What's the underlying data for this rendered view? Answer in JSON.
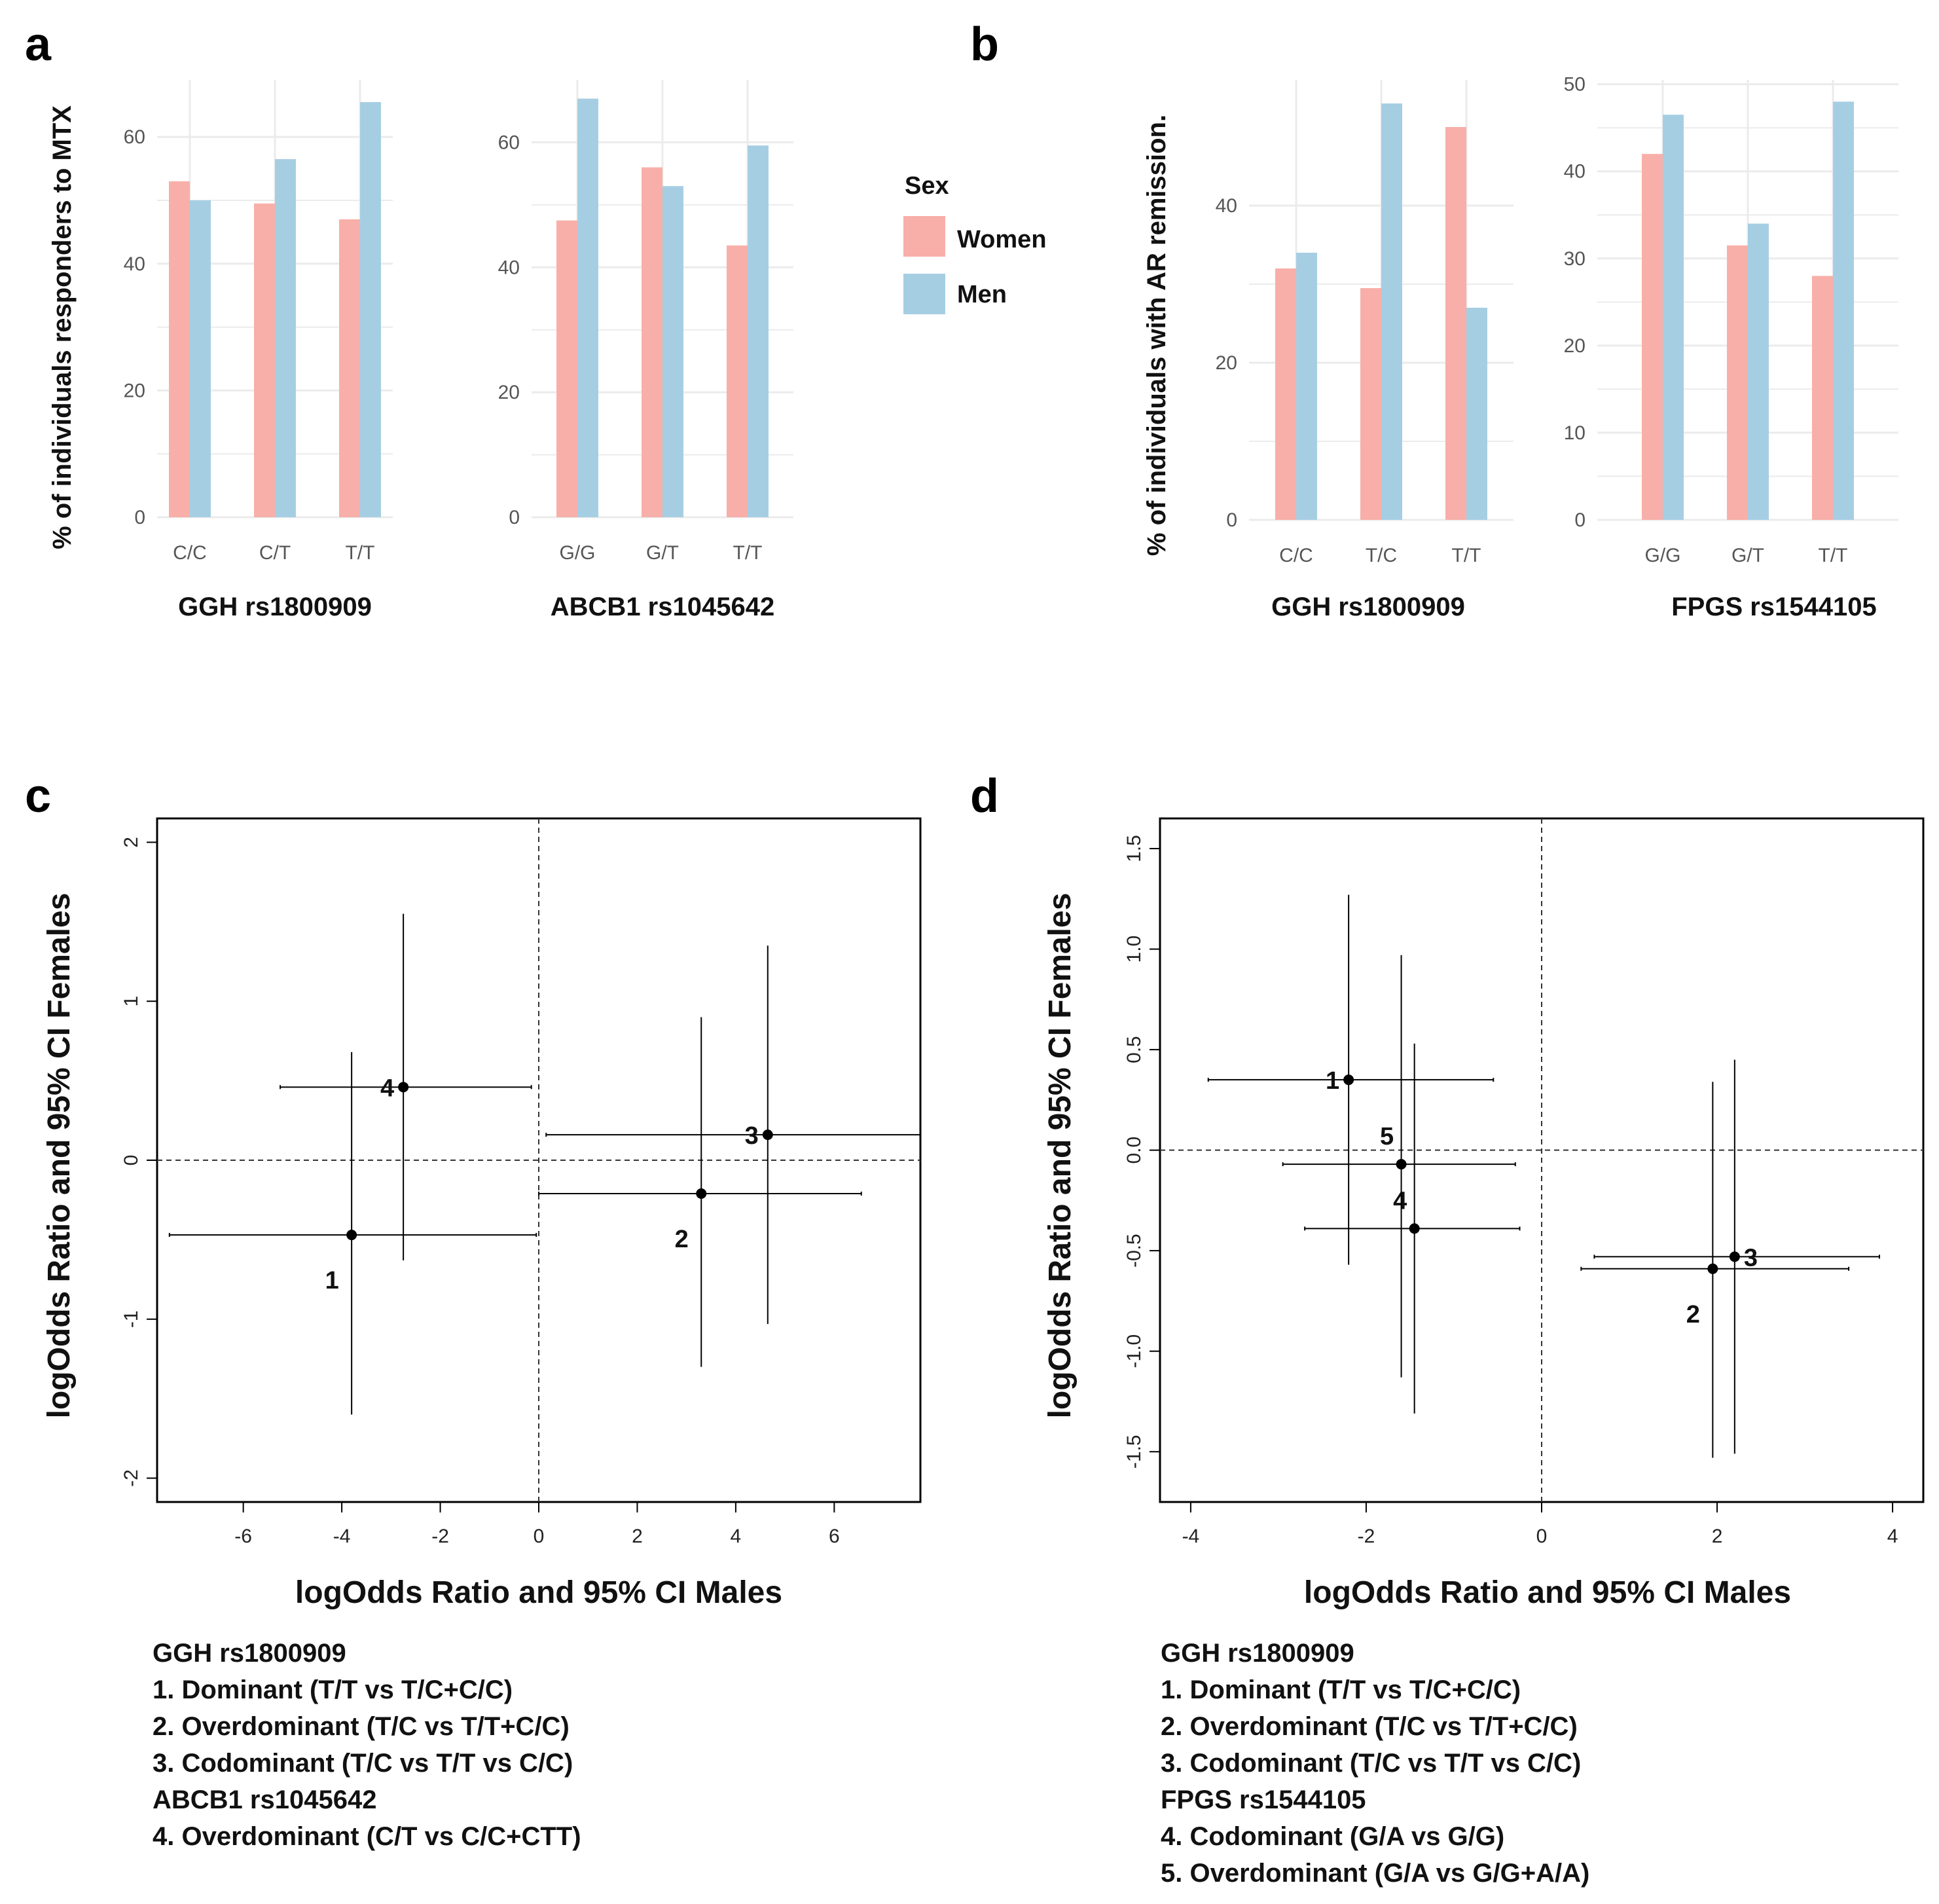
{
  "panels": {
    "a": "a",
    "b": "b",
    "c": "c",
    "d": "d"
  },
  "colors": {
    "women": "#F8AFA9",
    "men": "#A6CEE3",
    "grid": "#EBEBEB",
    "axis": "#000000"
  },
  "legend": {
    "title": "Sex",
    "items": [
      {
        "label": "Women",
        "color": "#F8AFA9"
      },
      {
        "label": "Men",
        "color": "#A6CEE3"
      }
    ]
  },
  "captions": {
    "c": [
      "GGH rs1800909",
      "1. Dominant (T/T vs T/C+C/C)",
      "2. Overdominant (T/C vs T/T+C/C)",
      "3. Codominant (T/C vs T/T vs C/C)",
      "ABCB1 rs1045642",
      "4. Overdominant (C/T vs C/C+CTT)"
    ],
    "d": [
      "GGH rs1800909",
      "1. Dominant (T/T vs T/C+C/C)",
      "2. Overdominant (T/C vs T/T+C/C)",
      "3. Codominant (T/C vs T/T vs C/C)",
      "FPGS rs1544105",
      "4. Codominant (G/A vs G/G)",
      "5. Overdominant (G/A vs G/G+A/A)"
    ]
  },
  "chart_data": [
    {
      "id": "a1",
      "type": "bar",
      "panel": "a",
      "ylabel": "% of individuals  responders to MTX",
      "xlabel": "GGH rs1800909",
      "categories": [
        "C/C",
        "C/T",
        "T/T"
      ],
      "series": [
        {
          "name": "Women",
          "values": [
            53,
            49.5,
            47
          ]
        },
        {
          "name": "Men",
          "values": [
            50,
            56.5,
            65.5
          ]
        }
      ],
      "ylim": [
        0,
        69
      ],
      "yticks": [
        0,
        20,
        40,
        60
      ]
    },
    {
      "id": "a2",
      "type": "bar",
      "panel": "a",
      "xlabel": "ABCB1 rs1045642",
      "categories": [
        "G/G",
        "G/T",
        "T/T"
      ],
      "series": [
        {
          "name": "Women",
          "values": [
            47.5,
            56,
            43.5
          ]
        },
        {
          "name": "Men",
          "values": [
            67,
            53,
            59.5
          ]
        }
      ],
      "ylim": [
        0,
        70
      ],
      "yticks": [
        0,
        20,
        40,
        60
      ]
    },
    {
      "id": "b1",
      "type": "bar",
      "panel": "b",
      "ylabel": "% of individuals  with AR remission.",
      "xlabel": "GGH rs1800909",
      "categories": [
        "C/C",
        "T/C",
        "T/T"
      ],
      "series": [
        {
          "name": "Women",
          "values": [
            32,
            29.5,
            50
          ]
        },
        {
          "name": "Men",
          "values": [
            34,
            53,
            27
          ]
        }
      ],
      "ylim": [
        0,
        56
      ],
      "yticks": [
        0,
        20,
        40
      ]
    },
    {
      "id": "b2",
      "type": "bar",
      "panel": "b",
      "xlabel": "FPGS rs1544105",
      "categories": [
        "G/G",
        "G/T",
        "T/T"
      ],
      "series": [
        {
          "name": "Women",
          "values": [
            42,
            31.5,
            28
          ]
        },
        {
          "name": "Men",
          "values": [
            46.5,
            34,
            48
          ]
        }
      ],
      "ylim": [
        0,
        50.5
      ],
      "yticks": [
        0,
        10,
        20,
        30,
        40,
        50
      ]
    },
    {
      "id": "c",
      "type": "scatter",
      "panel": "c",
      "xlabel": "logOdds Ratio and 95% CI Males",
      "ylabel": "logOdds Ratio and 95% CI Females",
      "xlim": [
        -7.75,
        7.75
      ],
      "ylim": [
        -2.15,
        2.15
      ],
      "xticks": [
        -6,
        -4,
        -2,
        0,
        2,
        4,
        6
      ],
      "yticks": [
        -2,
        -1,
        0,
        1,
        2
      ],
      "points": [
        {
          "label": "1",
          "x": -3.8,
          "y": -0.47,
          "xci": [
            -7.5,
            -0.05
          ],
          "yci": [
            -1.6,
            0.68
          ],
          "label_pos": "below-left"
        },
        {
          "label": "2",
          "x": 3.3,
          "y": -0.21,
          "xci": [
            0.0,
            6.55
          ],
          "yci": [
            -1.3,
            0.9
          ],
          "label_pos": "below-left"
        },
        {
          "label": "3",
          "x": 4.65,
          "y": 0.16,
          "xci": [
            0.15,
            7.75
          ],
          "yci": [
            -1.03,
            1.35
          ],
          "label_pos": "left"
        },
        {
          "label": "4",
          "x": -2.75,
          "y": 0.46,
          "xci": [
            -5.25,
            -0.15
          ],
          "yci": [
            -0.63,
            1.55
          ],
          "label_pos": "left"
        }
      ]
    },
    {
      "id": "d",
      "type": "scatter",
      "panel": "d",
      "xlabel": "logOdds Ratio and 95% CI Males",
      "ylabel": "logOdds Ratio and 95% CI Females",
      "xlim": [
        -4.35,
        4.35
      ],
      "ylim": [
        -1.75,
        1.65
      ],
      "xticks": [
        -4,
        -2,
        0,
        2,
        4
      ],
      "yticks": [
        -1.5,
        -1.0,
        -0.5,
        0.0,
        0.5,
        1.0,
        1.5
      ],
      "points": [
        {
          "label": "1",
          "x": -2.2,
          "y": 0.35,
          "xci": [
            -3.8,
            -0.55
          ],
          "yci": [
            -0.57,
            1.27
          ],
          "label_pos": "left"
        },
        {
          "label": "2",
          "x": 1.95,
          "y": -0.59,
          "xci": [
            0.45,
            3.5
          ],
          "yci": [
            -1.53,
            0.34
          ],
          "label_pos": "below-left"
        },
        {
          "label": "3",
          "x": 2.2,
          "y": -0.53,
          "xci": [
            0.6,
            3.85
          ],
          "yci": [
            -1.51,
            0.45
          ],
          "label_pos": "right"
        },
        {
          "label": "4",
          "x": -1.45,
          "y": -0.39,
          "xci": [
            -2.7,
            -0.25
          ],
          "yci": [
            -1.31,
            0.53
          ],
          "label_pos": "above-left"
        },
        {
          "label": "5",
          "x": -1.6,
          "y": -0.07,
          "xci": [
            -2.95,
            -0.3
          ],
          "yci": [
            -1.13,
            0.97
          ],
          "label_pos": "above-left"
        }
      ]
    }
  ]
}
